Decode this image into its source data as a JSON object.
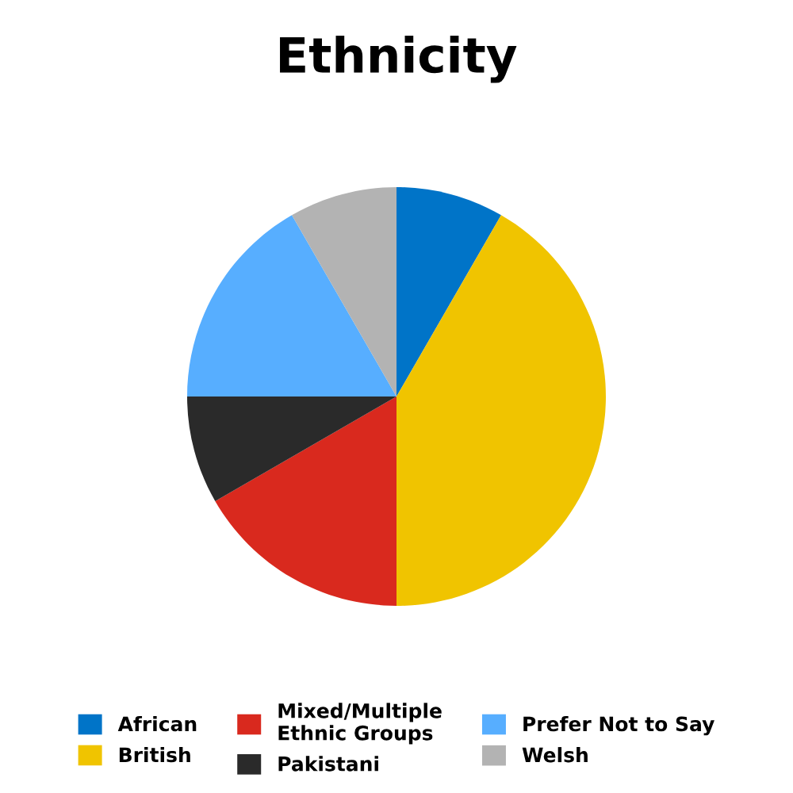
{
  "chart_data": {
    "type": "pie",
    "title": "Ethnicity",
    "categories": [
      "African",
      "British",
      "Mixed/Multiple Ethnic Groups",
      "Pakistani",
      "Prefer Not to Say",
      "Welsh"
    ],
    "values": [
      8.33,
      41.67,
      16.67,
      8.33,
      16.67,
      8.33
    ],
    "colors": [
      "#0074c8",
      "#f0c400",
      "#d9291e",
      "#2a2a2a",
      "#57aeff",
      "#b3b3b3"
    ],
    "legend": "bottom"
  }
}
